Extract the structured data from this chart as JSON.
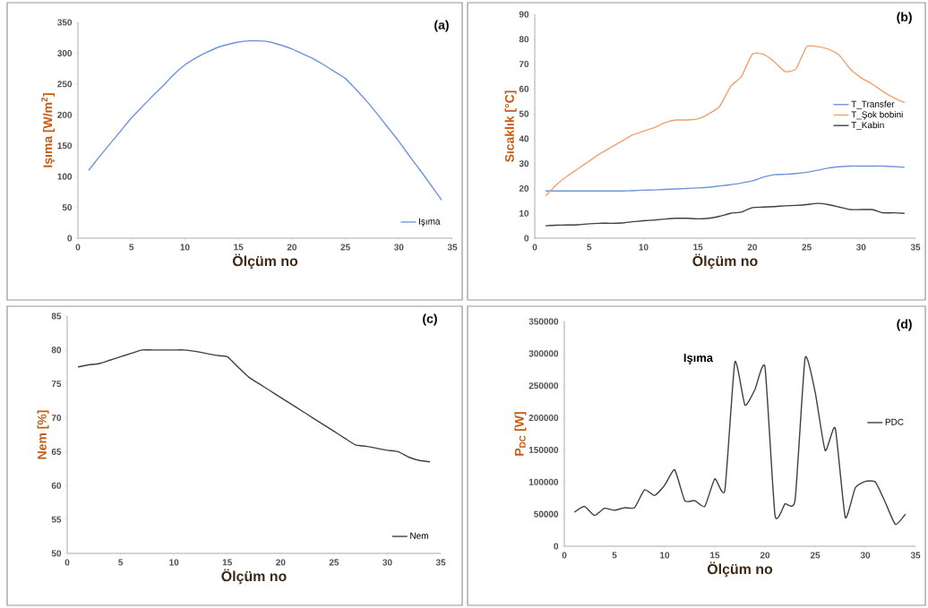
{
  "chart_data": [
    {
      "type": "line",
      "title": "(a)",
      "xlabel": "Ölçüm no",
      "ylabel": "Işıma  [W/m$^{2}$]",
      "x": [
        1,
        2,
        3,
        4,
        5,
        6,
        7,
        8,
        9,
        10,
        11,
        12,
        13,
        14,
        15,
        16,
        17,
        18,
        19,
        20,
        21,
        22,
        23,
        24,
        25,
        26,
        27,
        28,
        29,
        30,
        31,
        32,
        33,
        34
      ],
      "series": [
        {
          "name": "Işıma",
          "color": "#6f95d8",
          "values": [
            110,
            132,
            153,
            174,
            195,
            213,
            231,
            248,
            266,
            281,
            292,
            301,
            309,
            314,
            318,
            320,
            320,
            318,
            313,
            307,
            299,
            291,
            281,
            270,
            259,
            241,
            222,
            201,
            179,
            157,
            133,
            110,
            86,
            62
          ]
        }
      ],
      "xlim": [
        0,
        35
      ],
      "xticks": [
        0,
        5,
        10,
        15,
        20,
        25,
        30,
        35
      ],
      "ylim": [
        0,
        350
      ],
      "yticks": [
        0,
        50,
        100,
        150,
        200,
        250,
        300,
        350
      ],
      "legend": "bottom right"
    },
    {
      "type": "line",
      "title": "(b)",
      "xlabel": "Ölçüm no",
      "ylabel": "Sıcaklık   [°C]",
      "x": [
        1,
        2,
        3,
        4,
        5,
        6,
        7,
        8,
        9,
        10,
        11,
        12,
        13,
        14,
        15,
        16,
        17,
        18,
        19,
        20,
        21,
        22,
        23,
        24,
        25,
        26,
        27,
        28,
        29,
        30,
        31,
        32,
        33,
        34
      ],
      "series": [
        {
          "name": "T_Transfer",
          "color": "#6f95d8",
          "values": [
            19,
            19,
            19,
            19,
            19,
            19,
            19,
            19,
            19.1,
            19.3,
            19.4,
            19.6,
            19.8,
            20,
            20.2,
            20.5,
            21,
            21.5,
            22.2,
            23,
            24.5,
            25.5,
            25.7,
            26,
            26.5,
            27.3,
            28.2,
            28.7,
            29,
            29,
            29,
            29,
            28.8,
            28.5
          ]
        },
        {
          "name": "T_Şok bobini",
          "color": "#f4a06a",
          "values": [
            17,
            21.5,
            25,
            28,
            31,
            34,
            36.5,
            39,
            41.5,
            43,
            44.5,
            46.5,
            47.5,
            47.5,
            48,
            50,
            53,
            61,
            65,
            74,
            74,
            71,
            67,
            68,
            77,
            77,
            76,
            73.5,
            68,
            64.5,
            62,
            59,
            56.5,
            54.5
          ]
        },
        {
          "name": "T_Kabin",
          "color": "#404040",
          "values": [
            5,
            5.2,
            5.3,
            5.4,
            5.8,
            6,
            6,
            6.1,
            6.6,
            7,
            7.3,
            7.7,
            8,
            8,
            7.8,
            8,
            8.8,
            10,
            10.5,
            12.3,
            12.5,
            12.7,
            13,
            13.2,
            13.5,
            14,
            13.5,
            12.5,
            11.5,
            11.5,
            11.5,
            10.2,
            10.2,
            10
          ]
        }
      ],
      "xlim": [
        0,
        35
      ],
      "xticks": [
        0,
        5,
        10,
        15,
        20,
        25,
        30,
        35
      ],
      "ylim": [
        0,
        90
      ],
      "yticks": [
        0,
        10,
        20,
        30,
        40,
        50,
        60,
        70,
        80,
        90
      ],
      "legend": "right"
    },
    {
      "type": "line",
      "title": "(c)",
      "xlabel": "Ölçüm no",
      "ylabel": "Nem  [%]",
      "x": [
        1,
        2,
        3,
        4,
        5,
        6,
        7,
        8,
        9,
        10,
        11,
        12,
        13,
        14,
        15,
        16,
        17,
        18,
        19,
        20,
        21,
        22,
        23,
        24,
        25,
        26,
        27,
        28,
        29,
        30,
        31,
        32,
        33,
        34
      ],
      "series": [
        {
          "name": "Nem",
          "color": "#404040",
          "values": [
            77.5,
            77.8,
            78,
            78.5,
            79,
            79.5,
            80,
            80,
            80,
            80,
            80,
            79.8,
            79.5,
            79.2,
            79,
            77.5,
            76,
            75,
            74,
            73,
            72,
            71,
            70,
            69,
            68,
            67,
            66,
            65.8,
            65.5,
            65.2,
            65,
            64.2,
            63.7,
            63.5
          ]
        }
      ],
      "xlim": [
        0,
        35
      ],
      "xticks": [
        0,
        5,
        10,
        15,
        20,
        25,
        30,
        35
      ],
      "ylim": [
        50,
        85
      ],
      "yticks": [
        50,
        55,
        60,
        65,
        70,
        75,
        80,
        85
      ],
      "legend": "bottom right"
    },
    {
      "type": "line",
      "title": "(d)",
      "xlabel": "Ölçüm no",
      "ylabel": "P$_{DC}$ [W]",
      "annotations": [
        "Işıma"
      ],
      "x": [
        1,
        2,
        3,
        4,
        5,
        6,
        7,
        8,
        9,
        10,
        11,
        12,
        13,
        14,
        15,
        16,
        17,
        18,
        19,
        20,
        21,
        22,
        23,
        24,
        25,
        26,
        27,
        28,
        29,
        30,
        31,
        32,
        33,
        34
      ],
      "series": [
        {
          "name": "PDC",
          "color": "#404040",
          "values": [
            53000,
            62000,
            48000,
            59000,
            56000,
            60000,
            60000,
            88000,
            79000,
            95000,
            119000,
            71000,
            71000,
            62000,
            105000,
            87000,
            287000,
            220000,
            244000,
            279000,
            48000,
            66000,
            72000,
            293000,
            240000,
            149000,
            184000,
            45000,
            91000,
            101000,
            100000,
            68000,
            34000,
            50000
          ]
        }
      ],
      "xlim": [
        0,
        35
      ],
      "xticks": [
        0,
        5,
        10,
        15,
        20,
        25,
        30,
        35
      ],
      "ylim": [
        0,
        350000
      ],
      "yticks": [
        0,
        50000,
        100000,
        150000,
        200000,
        250000,
        300000,
        350000
      ],
      "legend": "right"
    }
  ]
}
